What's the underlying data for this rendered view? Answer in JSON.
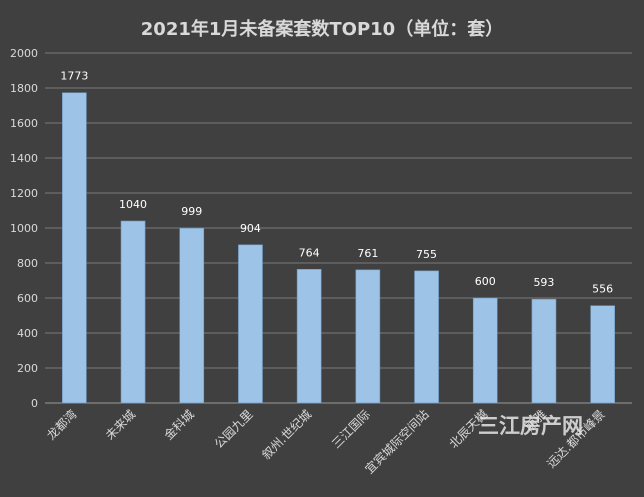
{
  "chart_data": {
    "type": "bar",
    "title": "2021年1月未备案套数TOP10（单位：套）",
    "categories": [
      "龙都湾",
      "未来城",
      "金科城",
      "公园九里",
      "叙州.世纪城",
      "三江国际",
      "宜宾城际空间站",
      "北辰天樾",
      "丽雅",
      "远达.都市峰景"
    ],
    "values": [
      1773,
      1040,
      999,
      904,
      764,
      761,
      755,
      600,
      593,
      556
    ],
    "ylim": [
      0,
      2000
    ],
    "yticks": [
      0,
      200,
      400,
      600,
      800,
      1000,
      1200,
      1400,
      1600,
      1800,
      2000
    ],
    "xlabel": "",
    "ylabel": "",
    "grid": true,
    "bar_color": "#9dc3e6",
    "background": "#404040"
  },
  "watermark": "三江房产网"
}
